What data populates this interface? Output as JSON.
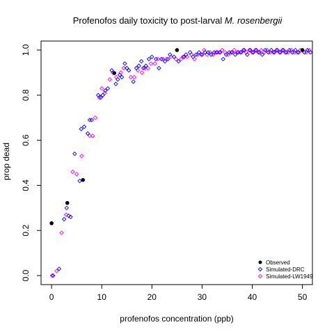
{
  "chart_data": {
    "type": "scatter",
    "title_main": "Profenofos daily toxicity to post-larval ",
    "title_italic": "M. rosenbergii",
    "xlabel": "profenofos concentration (ppb)",
    "ylabel": "prop dead",
    "xlim": [
      -2.1,
      52
    ],
    "ylim": [
      -0.04,
      1.04
    ],
    "x_ticks": [
      0,
      10,
      20,
      30,
      40,
      50
    ],
    "y_ticks": [
      0.0,
      0.2,
      0.4,
      0.6,
      0.8,
      1.0
    ],
    "x_tick_labels": [
      "0",
      "10",
      "20",
      "30",
      "40",
      "50"
    ],
    "y_tick_labels": [
      "0.0",
      "0.2",
      "0.4",
      "0.6",
      "0.8",
      "1.0"
    ],
    "grid": false,
    "legend_position": "bottom-right",
    "series": [
      {
        "name": "Observed",
        "marker": "filled-circle",
        "color": "#000000",
        "points": [
          [
            0,
            0.232
          ],
          [
            3.125,
            0.322
          ],
          [
            6.25,
            0.424
          ],
          [
            12.5,
            0.898
          ],
          [
            25,
            1.0
          ],
          [
            50,
            1.0
          ]
        ]
      },
      {
        "name": "Simulated-DRC",
        "marker": "open-diamond",
        "color": "#0000ff",
        "points": [
          [
            0.3,
            0.0
          ],
          [
            1.5,
            0.03
          ],
          [
            2.5,
            0.25
          ],
          [
            3.0,
            0.3
          ],
          [
            3.4,
            0.265
          ],
          [
            3.8,
            0.26
          ],
          [
            4.6,
            0.54
          ],
          [
            5.6,
            0.42
          ],
          [
            5.9,
            0.65
          ],
          [
            6.5,
            0.66
          ],
          [
            7.2,
            0.63
          ],
          [
            7.6,
            0.69
          ],
          [
            8.0,
            0.69
          ],
          [
            9.3,
            0.8
          ],
          [
            9.8,
            0.79
          ],
          [
            10.2,
            0.8
          ],
          [
            10.7,
            0.82
          ],
          [
            11.2,
            0.83
          ],
          [
            12.0,
            0.91
          ],
          [
            12.8,
            0.85
          ],
          [
            13.2,
            0.87
          ],
          [
            13.6,
            0.89
          ],
          [
            14.0,
            0.88
          ],
          [
            14.6,
            0.94
          ],
          [
            15.0,
            0.92
          ],
          [
            15.4,
            0.91
          ],
          [
            16.3,
            0.86
          ],
          [
            16.9,
            0.92
          ],
          [
            17.4,
            0.93
          ],
          [
            17.9,
            0.95
          ],
          [
            18.3,
            0.92
          ],
          [
            18.8,
            0.93
          ],
          [
            19.4,
            0.96
          ],
          [
            20.0,
            0.97
          ],
          [
            20.8,
            0.96
          ],
          [
            21.4,
            0.92
          ],
          [
            21.9,
            0.96
          ],
          [
            22.6,
            0.95
          ],
          [
            23.2,
            0.96
          ],
          [
            23.6,
            0.98
          ],
          [
            24.4,
            0.97
          ],
          [
            25.3,
            0.95
          ],
          [
            26.4,
            0.97
          ],
          [
            26.8,
            0.98
          ],
          [
            27.6,
            0.99
          ],
          [
            28.2,
            0.97
          ],
          [
            28.8,
            0.98
          ],
          [
            29.4,
            0.99
          ],
          [
            30.0,
            0.98
          ],
          [
            30.6,
            0.99
          ],
          [
            31.2,
            0.99
          ],
          [
            31.8,
            0.98
          ],
          [
            32.4,
            0.99
          ],
          [
            33.0,
            0.99
          ],
          [
            33.6,
            0.99
          ],
          [
            34.2,
            0.96
          ],
          [
            34.8,
            0.98
          ],
          [
            35.4,
            0.99
          ],
          [
            36.0,
            0.99
          ],
          [
            36.6,
            0.98
          ],
          [
            37.2,
            0.99
          ],
          [
            37.8,
            0.99
          ],
          [
            38.4,
            1.0
          ],
          [
            39.0,
            0.98
          ],
          [
            39.6,
            1.0
          ],
          [
            40.2,
            0.99
          ],
          [
            40.8,
            1.0
          ],
          [
            41.4,
            0.99
          ],
          [
            42.0,
            0.98
          ],
          [
            42.6,
            1.0
          ],
          [
            43.2,
            0.99
          ],
          [
            43.8,
            1.0
          ],
          [
            44.4,
            0.99
          ],
          [
            45.0,
            1.0
          ],
          [
            45.6,
            0.99
          ],
          [
            46.2,
            1.0
          ],
          [
            46.8,
            0.99
          ],
          [
            47.4,
            1.0
          ],
          [
            48.0,
            0.99
          ],
          [
            48.6,
            1.0
          ],
          [
            49.2,
            0.99
          ],
          [
            50.4,
            0.99
          ],
          [
            51.0,
            1.0
          ],
          [
            51.6,
            0.99
          ]
        ]
      },
      {
        "name": "Simulated-LW1949",
        "marker": "open-diamond",
        "color": "#ff00ff",
        "points": [
          [
            0.1,
            0.0
          ],
          [
            1.0,
            0.02
          ],
          [
            2.0,
            0.19
          ],
          [
            2.9,
            0.27
          ],
          [
            4.2,
            0.46
          ],
          [
            5.0,
            0.45
          ],
          [
            6.0,
            0.53
          ],
          [
            7.6,
            0.62
          ],
          [
            8.2,
            0.62
          ],
          [
            8.7,
            0.7
          ],
          [
            9.5,
            0.79
          ],
          [
            10.0,
            0.83
          ],
          [
            10.6,
            0.81
          ],
          [
            11.6,
            0.87
          ],
          [
            12.2,
            0.9
          ],
          [
            12.9,
            0.88
          ],
          [
            13.8,
            0.9
          ],
          [
            14.4,
            0.92
          ],
          [
            15.8,
            0.88
          ],
          [
            16.5,
            0.88
          ],
          [
            17.2,
            0.91
          ],
          [
            18.0,
            0.9
          ],
          [
            18.6,
            0.92
          ],
          [
            19.2,
            0.92
          ],
          [
            19.8,
            0.94
          ],
          [
            20.6,
            0.94
          ],
          [
            21.2,
            0.96
          ],
          [
            22.2,
            0.96
          ],
          [
            22.9,
            0.96
          ],
          [
            23.8,
            0.97
          ],
          [
            24.8,
            0.96
          ],
          [
            25.8,
            0.96
          ],
          [
            26.2,
            0.97
          ],
          [
            27.0,
            0.97
          ],
          [
            27.9,
            0.98
          ],
          [
            28.5,
            0.96
          ],
          [
            29.1,
            0.98
          ],
          [
            29.8,
            0.98
          ],
          [
            30.4,
            1.0
          ],
          [
            31.0,
            0.98
          ],
          [
            31.6,
            0.99
          ],
          [
            32.2,
            0.98
          ],
          [
            32.8,
            0.99
          ],
          [
            33.4,
            0.99
          ],
          [
            34.0,
            1.0
          ],
          [
            34.6,
            0.99
          ],
          [
            35.2,
            0.98
          ],
          [
            35.8,
            0.99
          ],
          [
            36.4,
            1.0
          ],
          [
            37.0,
            0.99
          ],
          [
            37.6,
            0.99
          ],
          [
            38.2,
            1.0
          ],
          [
            38.8,
            0.99
          ],
          [
            39.4,
            1.0
          ],
          [
            40.0,
            0.99
          ],
          [
            40.6,
            1.0
          ],
          [
            41.2,
            0.99
          ],
          [
            41.8,
            1.0
          ],
          [
            42.4,
            0.99
          ],
          [
            43.0,
            1.0
          ],
          [
            43.6,
            0.99
          ],
          [
            44.2,
            0.99
          ],
          [
            44.8,
            1.0
          ],
          [
            45.4,
            0.99
          ],
          [
            46.0,
            1.0
          ],
          [
            46.6,
            0.99
          ],
          [
            47.2,
            0.99
          ],
          [
            47.8,
            1.0
          ],
          [
            48.4,
            0.99
          ],
          [
            49.0,
            0.99
          ],
          [
            49.6,
            1.0
          ],
          [
            50.8,
            0.99
          ],
          [
            51.4,
            1.0
          ]
        ]
      }
    ]
  }
}
